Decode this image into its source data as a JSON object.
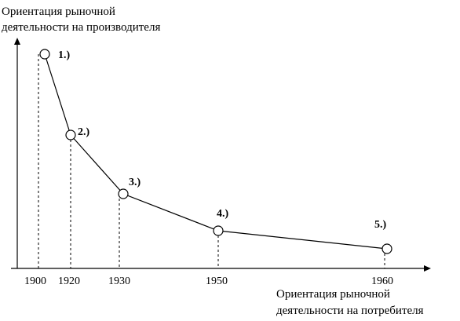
{
  "chart_data": {
    "type": "line",
    "ylabel_lines": [
      "Ориентация рыночной",
      "деятельности на производителя"
    ],
    "xlabel_lines": [
      "Ориентация рыночной",
      "деятельности на потребителя"
    ],
    "x_ticks": [
      "1900",
      "1920",
      "1930",
      "1950",
      "1960"
    ],
    "series": [
      {
        "points": [
          {
            "label": "1.)"
          },
          {
            "label": "2.)"
          },
          {
            "label": "3.)"
          },
          {
            "label": "4.)"
          },
          {
            "label": "5.)"
          }
        ]
      }
    ],
    "grid": false,
    "legend": "none"
  }
}
